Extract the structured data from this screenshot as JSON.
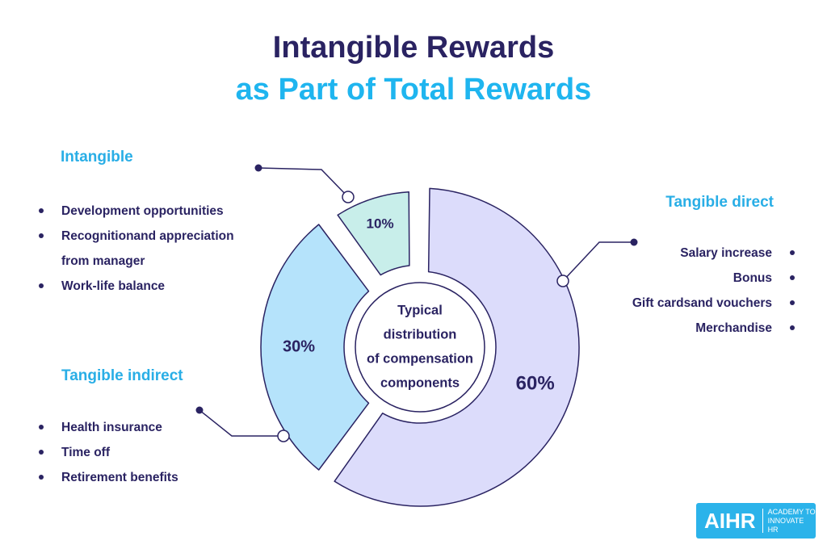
{
  "title": "Intangible Rewards",
  "subtitle": "as Part of Total Rewards",
  "chart_data": {
    "type": "donut",
    "center_label": [
      "Typical",
      "distribution",
      "of compensation",
      "components"
    ],
    "categories": [
      "Tangible direct",
      "Tangible indirect",
      "Intangible"
    ],
    "values": [
      60,
      30,
      10
    ],
    "value_labels": [
      "60%",
      "30%",
      "10%"
    ],
    "colors": [
      "#dcdcfb",
      "#b5e3fb",
      "#c8eeea"
    ]
  },
  "benefits": [
    [
      "Salary increase",
      "Bonus",
      "Gift cardsand vouchers",
      "Merchandise"
    ],
    [
      "Health insurance",
      "Time off",
      "Retirement benefits"
    ],
    [
      "Development opportunities",
      "Recognitionand appreciation from manager",
      "Work-life balance"
    ]
  ],
  "logo": {
    "name": "AIHR",
    "tagline": [
      "ACADEMY TO",
      "INNOVATE HR"
    ]
  }
}
